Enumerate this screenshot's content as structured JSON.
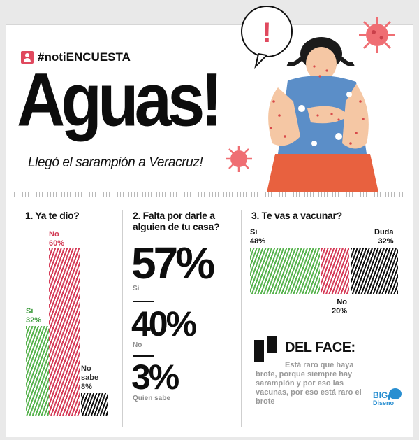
{
  "header": {
    "hashtag": "#notiENCUESTA",
    "title": "Aguas!",
    "subtitle": "Llegó el sarampión a Veracruz!"
  },
  "alert_symbol": "!",
  "colors": {
    "green": "#57b34e",
    "pink": "#d63c58",
    "black": "#111111",
    "accent": "#e0495e"
  },
  "icons": [
    "user-icon",
    "virus-icon",
    "quote-icon",
    "elephant-icon"
  ],
  "q1": {
    "question": "1. Ya te dio?",
    "answers": [
      {
        "label": "Si",
        "value_text": "32%"
      },
      {
        "label": "No",
        "value_text": "60%"
      },
      {
        "label": "No sabe",
        "value_text": "8%"
      }
    ]
  },
  "q2": {
    "question": "2. Falta por darle a alguien de tu casa?",
    "answers": [
      {
        "value_text": "57%",
        "label": "Si"
      },
      {
        "value_text": "40%",
        "label": "No"
      },
      {
        "value_text": "3%",
        "label": "Quien sabe"
      }
    ]
  },
  "q3": {
    "question": "3. Te vas a vacunar?",
    "answers": [
      {
        "label": "Si",
        "value_text": "48%"
      },
      {
        "label": "No",
        "value_text": "20%"
      },
      {
        "label": "Duda",
        "value_text": "32%"
      }
    ]
  },
  "face": {
    "title": "DEL FACE:",
    "text": "Está raro que haya brote, porque siempre hay sarampión y por eso las vacunas, por eso está raro el brote"
  },
  "logo": {
    "big": "BIG",
    "sub": "Diseno"
  },
  "chart_data": [
    {
      "type": "bar",
      "title": "1. Ya te dio?",
      "categories": [
        "Si",
        "No",
        "No sabe"
      ],
      "values": [
        32,
        60,
        8
      ],
      "ylim": [
        0,
        60
      ]
    },
    {
      "type": "table",
      "title": "2. Falta por darle a alguien de tu casa?",
      "categories": [
        "Si",
        "No",
        "Quien sabe"
      ],
      "values": [
        57,
        40,
        3
      ]
    },
    {
      "type": "bar",
      "title": "3. Te vas a vacunar?",
      "orientation": "horizontal-stacked",
      "categories": [
        "Si",
        "No",
        "Duda"
      ],
      "values": [
        48,
        20,
        32
      ]
    }
  ]
}
